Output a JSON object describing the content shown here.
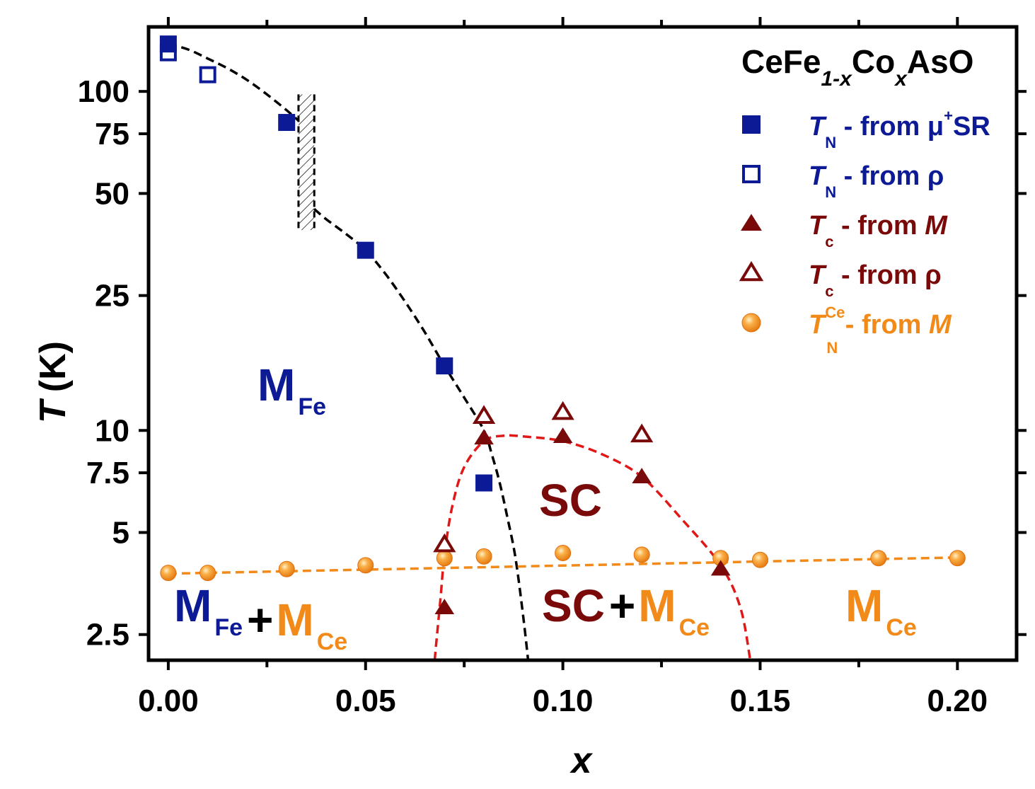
{
  "chart_data": {
    "type": "scatter",
    "title": "CeFe1-xCoxAsO",
    "title_parts": {
      "base1": "CeFe",
      "sub1": "1-x",
      "base2": "Co",
      "sub2": "x",
      "base3": "AsO"
    },
    "xlabel": "x",
    "ylabel_italic": "T",
    "ylabel_unit": "(K)",
    "yscale": "log",
    "xlim": [
      -0.005,
      0.215
    ],
    "ylim": [
      2.1,
      155
    ],
    "x_ticks": [
      0.0,
      0.05,
      0.1,
      0.15,
      0.2
    ],
    "x_tick_labels": [
      "0.00",
      "0.05",
      "0.10",
      "0.15",
      "0.20"
    ],
    "y_ticks": [
      2.5,
      5,
      7.5,
      10,
      25,
      50,
      75,
      100
    ],
    "y_tick_labels": [
      "2.5",
      "5",
      "7.5",
      "10",
      "25",
      "50",
      "75",
      "100"
    ],
    "series": [
      {
        "key": "tn_musr",
        "name": "T_N - from μ+SR",
        "marker": "square-filled",
        "color": "#0d1a96",
        "points": [
          [
            0.0,
            138
          ],
          [
            0.03,
            81
          ],
          [
            0.05,
            34
          ],
          [
            0.07,
            15.5
          ],
          [
            0.08,
            7.0
          ]
        ]
      },
      {
        "key": "tn_rho",
        "name": "T_N - from ρ",
        "marker": "square-open",
        "color": "#0d1a96",
        "points": [
          [
            0.0,
            130
          ],
          [
            0.01,
            112
          ]
        ]
      },
      {
        "key": "tc_m",
        "name": "T_c - from M",
        "marker": "triangle-filled",
        "color": "#7a0a0a",
        "points": [
          [
            0.07,
            3.0
          ],
          [
            0.08,
            9.5
          ],
          [
            0.1,
            9.6
          ],
          [
            0.12,
            7.3
          ],
          [
            0.14,
            3.9
          ]
        ]
      },
      {
        "key": "tc_rho",
        "name": "T_c - from ρ",
        "marker": "triangle-open",
        "color": "#7a0a0a",
        "points": [
          [
            0.07,
            4.6
          ],
          [
            0.08,
            11.0
          ],
          [
            0.1,
            11.3
          ],
          [
            0.12,
            9.7
          ]
        ]
      },
      {
        "key": "tnce_m",
        "name": "T_N^Ce - from M",
        "marker": "circle-filled",
        "color": "#f28a1a",
        "points": [
          [
            0.0,
            3.8
          ],
          [
            0.01,
            3.8
          ],
          [
            0.03,
            3.9
          ],
          [
            0.05,
            4.0
          ],
          [
            0.07,
            4.2
          ],
          [
            0.08,
            4.25
          ],
          [
            0.1,
            4.35
          ],
          [
            0.12,
            4.3
          ],
          [
            0.14,
            4.2
          ],
          [
            0.15,
            4.15
          ],
          [
            0.18,
            4.2
          ],
          [
            0.2,
            4.2
          ]
        ]
      }
    ],
    "fit_curves": [
      {
        "name": "M_Fe boundary upper",
        "color": "#000000",
        "points": [
          [
            0.0,
            138
          ],
          [
            0.005,
            133
          ],
          [
            0.01,
            125
          ],
          [
            0.015,
            117
          ],
          [
            0.02,
            108
          ],
          [
            0.025,
            98
          ],
          [
            0.03,
            88
          ],
          [
            0.033,
            82
          ]
        ]
      },
      {
        "name": "M_Fe boundary lower",
        "color": "#000000",
        "points": [
          [
            0.037,
            45
          ],
          [
            0.04,
            42
          ],
          [
            0.045,
            38
          ],
          [
            0.05,
            34
          ],
          [
            0.055,
            29
          ],
          [
            0.06,
            24
          ],
          [
            0.065,
            19.5
          ],
          [
            0.07,
            15.5
          ],
          [
            0.075,
            12.5
          ],
          [
            0.08,
            10.0
          ],
          [
            0.082,
            8.5
          ],
          [
            0.084,
            7.0
          ],
          [
            0.086,
            5.5
          ],
          [
            0.088,
            4.2
          ],
          [
            0.09,
            2.8
          ],
          [
            0.0912,
            2.1
          ]
        ]
      },
      {
        "name": "SC dome",
        "color": "#e01818",
        "points": [
          [
            0.0675,
            2.1
          ],
          [
            0.069,
            3.2
          ],
          [
            0.07,
            4.3
          ],
          [
            0.072,
            6.0
          ],
          [
            0.075,
            7.8
          ],
          [
            0.08,
            9.3
          ],
          [
            0.085,
            9.65
          ],
          [
            0.09,
            9.6
          ],
          [
            0.1,
            9.3
          ],
          [
            0.11,
            8.5
          ],
          [
            0.12,
            7.3
          ],
          [
            0.13,
            5.5
          ],
          [
            0.14,
            4.0
          ],
          [
            0.145,
            3.0
          ],
          [
            0.1475,
            2.1
          ]
        ]
      },
      {
        "name": "M_Ce boundary",
        "color": "#f28a1a",
        "points": [
          [
            0.0,
            3.78
          ],
          [
            0.2,
            4.22
          ]
        ]
      }
    ],
    "hatched_region": {
      "x_range": [
        0.033,
        0.037
      ],
      "y_range": [
        39,
        98
      ]
    },
    "regions": [
      {
        "key": "mfe",
        "label": "M",
        "sub": "Fe",
        "color": "#0d1a96"
      },
      {
        "key": "sc",
        "label": "SC",
        "color": "#7a0a0a"
      },
      {
        "key": "mfe_mce",
        "parts": [
          {
            "t": "M",
            "sub": "Fe",
            "color": "#0d1a96"
          },
          {
            "t": "+",
            "color": "#000000"
          },
          {
            "t": "M",
            "sub": "Ce",
            "color": "#f28a1a"
          }
        ]
      },
      {
        "key": "sc_mce",
        "parts": [
          {
            "t": "SC",
            "color": "#7a0a0a"
          },
          {
            "t": "+",
            "color": "#000000"
          },
          {
            "t": "M",
            "sub": "Ce",
            "color": "#f28a1a"
          }
        ]
      },
      {
        "key": "mce",
        "label": "M",
        "sub": "Ce",
        "color": "#f28a1a"
      }
    ],
    "legend": [
      {
        "key": "tn_musr",
        "italic": "T",
        "sub": "N",
        "text": " - from μ",
        "sup": "+",
        "tail": "SR",
        "tail_italic": false,
        "color": "#0d1a96"
      },
      {
        "key": "tn_rho",
        "italic": "T",
        "sub": "N",
        "text": " - from ρ",
        "color": "#0d1a96"
      },
      {
        "key": "tc_m",
        "italic": "T",
        "sub": "c",
        "text": " - from ",
        "tail": "M",
        "tail_italic": true,
        "color": "#7a0a0a"
      },
      {
        "key": "tc_rho",
        "italic": "T",
        "sub": "c",
        "text": " - from ρ",
        "color": "#7a0a0a"
      },
      {
        "key": "tnce_m",
        "italic": "T",
        "sub": "N",
        "sup": "Ce",
        "text": " - from ",
        "tail": "M",
        "tail_italic": true,
        "color": "#f28a1a"
      }
    ],
    "legend_position": "top-right"
  }
}
